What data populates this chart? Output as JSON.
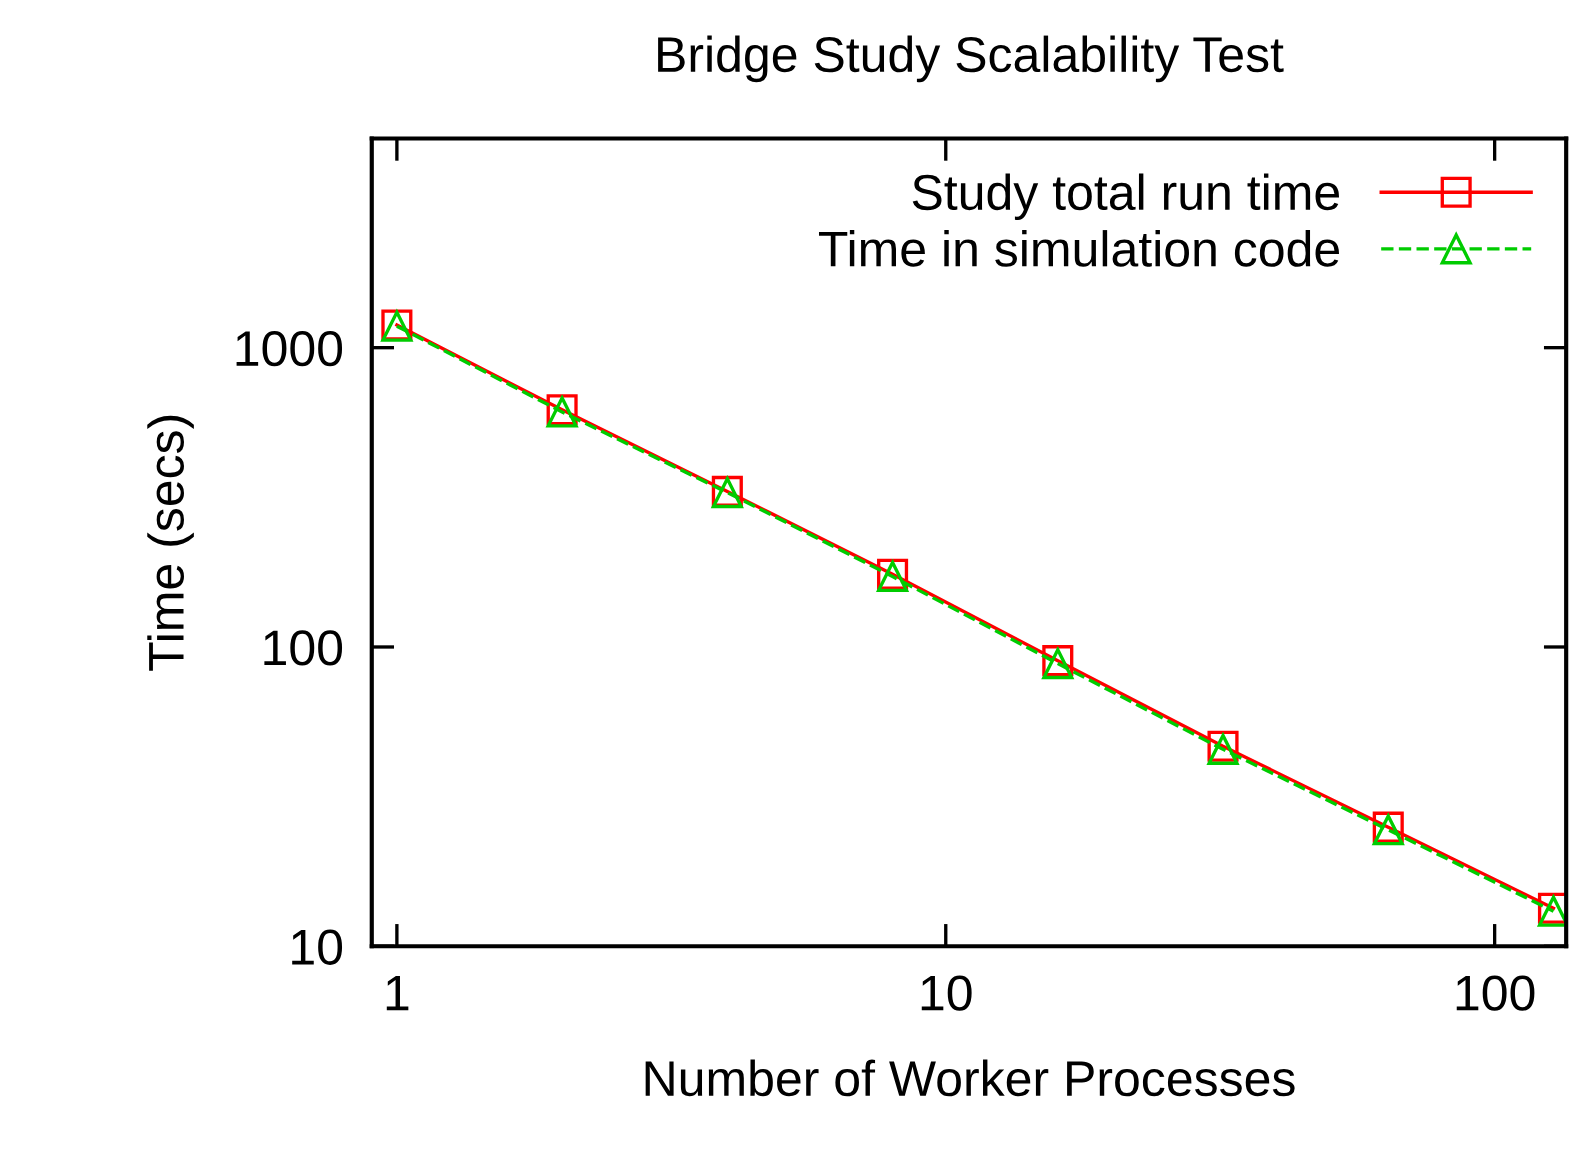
{
  "chart_data": {
    "type": "line",
    "title": "Bridge Study Scalability Test",
    "xlabel": "Number of Worker Processes",
    "ylabel": "Time (secs)",
    "x": [
      1,
      2,
      4,
      8,
      16,
      32,
      64,
      128
    ],
    "series": [
      {
        "name": "Study total run time",
        "color": "#ff0000",
        "marker": "square",
        "line_style": "solid",
        "values": [
          1190,
          620,
          331,
          175,
          90,
          46.6,
          25,
          13.4
        ]
      },
      {
        "name": "Time in simulation code",
        "color": "#00cc00",
        "marker": "triangle",
        "line_style": "dashed",
        "values": [
          1180,
          610,
          328,
          172,
          88,
          45.5,
          24.5,
          13.1
        ]
      }
    ],
    "log": "xy",
    "xlim": [
      0.9,
      135
    ],
    "ylim": [
      10,
      5000
    ],
    "xticks": [
      1,
      10,
      100
    ],
    "yticks": [
      10,
      100,
      1000
    ],
    "grid": false,
    "legend": "top right"
  }
}
